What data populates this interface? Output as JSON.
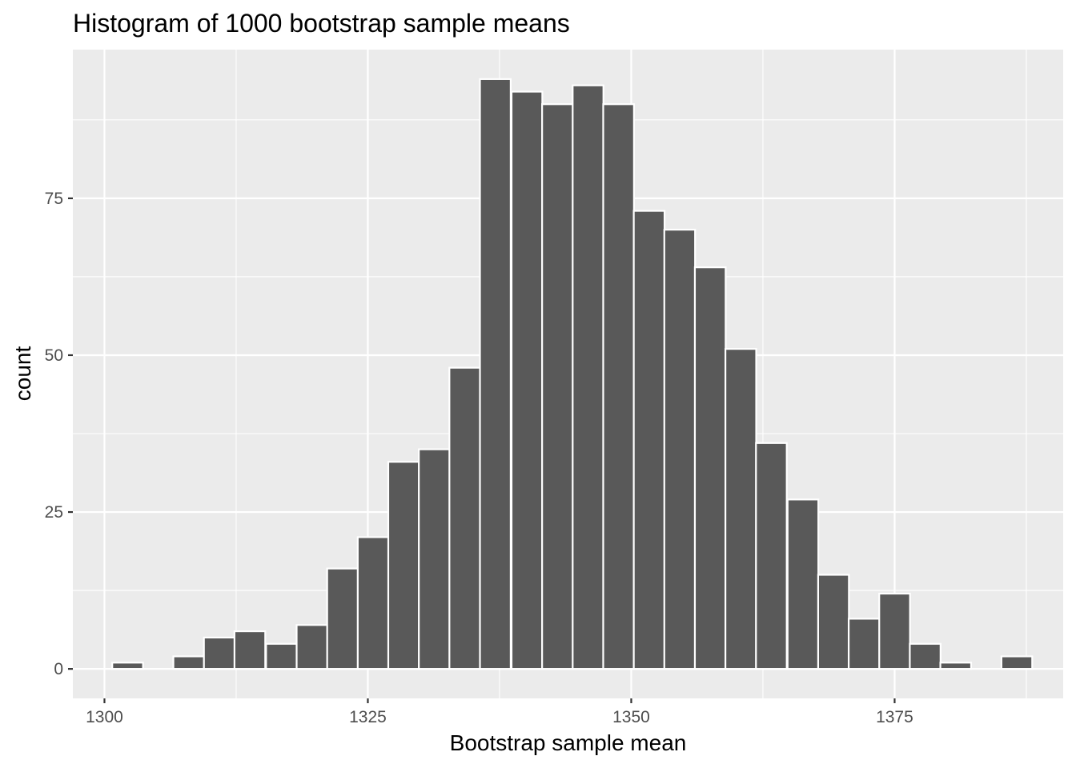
{
  "chart_data": {
    "type": "bar",
    "title": "Histogram of 1000 bootstrap sample means",
    "xlabel": "Bootstrap sample mean",
    "ylabel": "count",
    "bin_width": 2.92,
    "bins": [
      {
        "x": 1302.2,
        "count": 1
      },
      {
        "x": 1305.1,
        "count": 0
      },
      {
        "x": 1308.0,
        "count": 2
      },
      {
        "x": 1310.9,
        "count": 5
      },
      {
        "x": 1313.8,
        "count": 6
      },
      {
        "x": 1316.8,
        "count": 4
      },
      {
        "x": 1319.7,
        "count": 7
      },
      {
        "x": 1322.6,
        "count": 16
      },
      {
        "x": 1325.5,
        "count": 21
      },
      {
        "x": 1328.4,
        "count": 33
      },
      {
        "x": 1331.3,
        "count": 35
      },
      {
        "x": 1334.2,
        "count": 48
      },
      {
        "x": 1337.1,
        "count": 94
      },
      {
        "x": 1340.1,
        "count": 92
      },
      {
        "x": 1343.0,
        "count": 90
      },
      {
        "x": 1345.9,
        "count": 93
      },
      {
        "x": 1348.8,
        "count": 90
      },
      {
        "x": 1351.7,
        "count": 73
      },
      {
        "x": 1354.6,
        "count": 70
      },
      {
        "x": 1357.5,
        "count": 64
      },
      {
        "x": 1360.4,
        "count": 51
      },
      {
        "x": 1363.3,
        "count": 36
      },
      {
        "x": 1366.3,
        "count": 27
      },
      {
        "x": 1369.2,
        "count": 15
      },
      {
        "x": 1372.1,
        "count": 8
      },
      {
        "x": 1375.0,
        "count": 12
      },
      {
        "x": 1377.9,
        "count": 4
      },
      {
        "x": 1380.8,
        "count": 1
      },
      {
        "x": 1383.7,
        "count": 0
      },
      {
        "x": 1386.6,
        "count": 2
      }
    ],
    "xlim": [
      1297,
      1391
    ],
    "ylim": [
      -4.7,
      98.7
    ],
    "x_ticks": [
      1300,
      1325,
      1350,
      1375
    ],
    "y_ticks": [
      0,
      25,
      50,
      75
    ],
    "grid": true,
    "colors": {
      "panel": "#ebebeb",
      "bar_fill": "#595959",
      "bar_outline": "#ffffff",
      "grid": "#ffffff",
      "tick_text": "#4d4d4d",
      "text": "#000000"
    }
  }
}
